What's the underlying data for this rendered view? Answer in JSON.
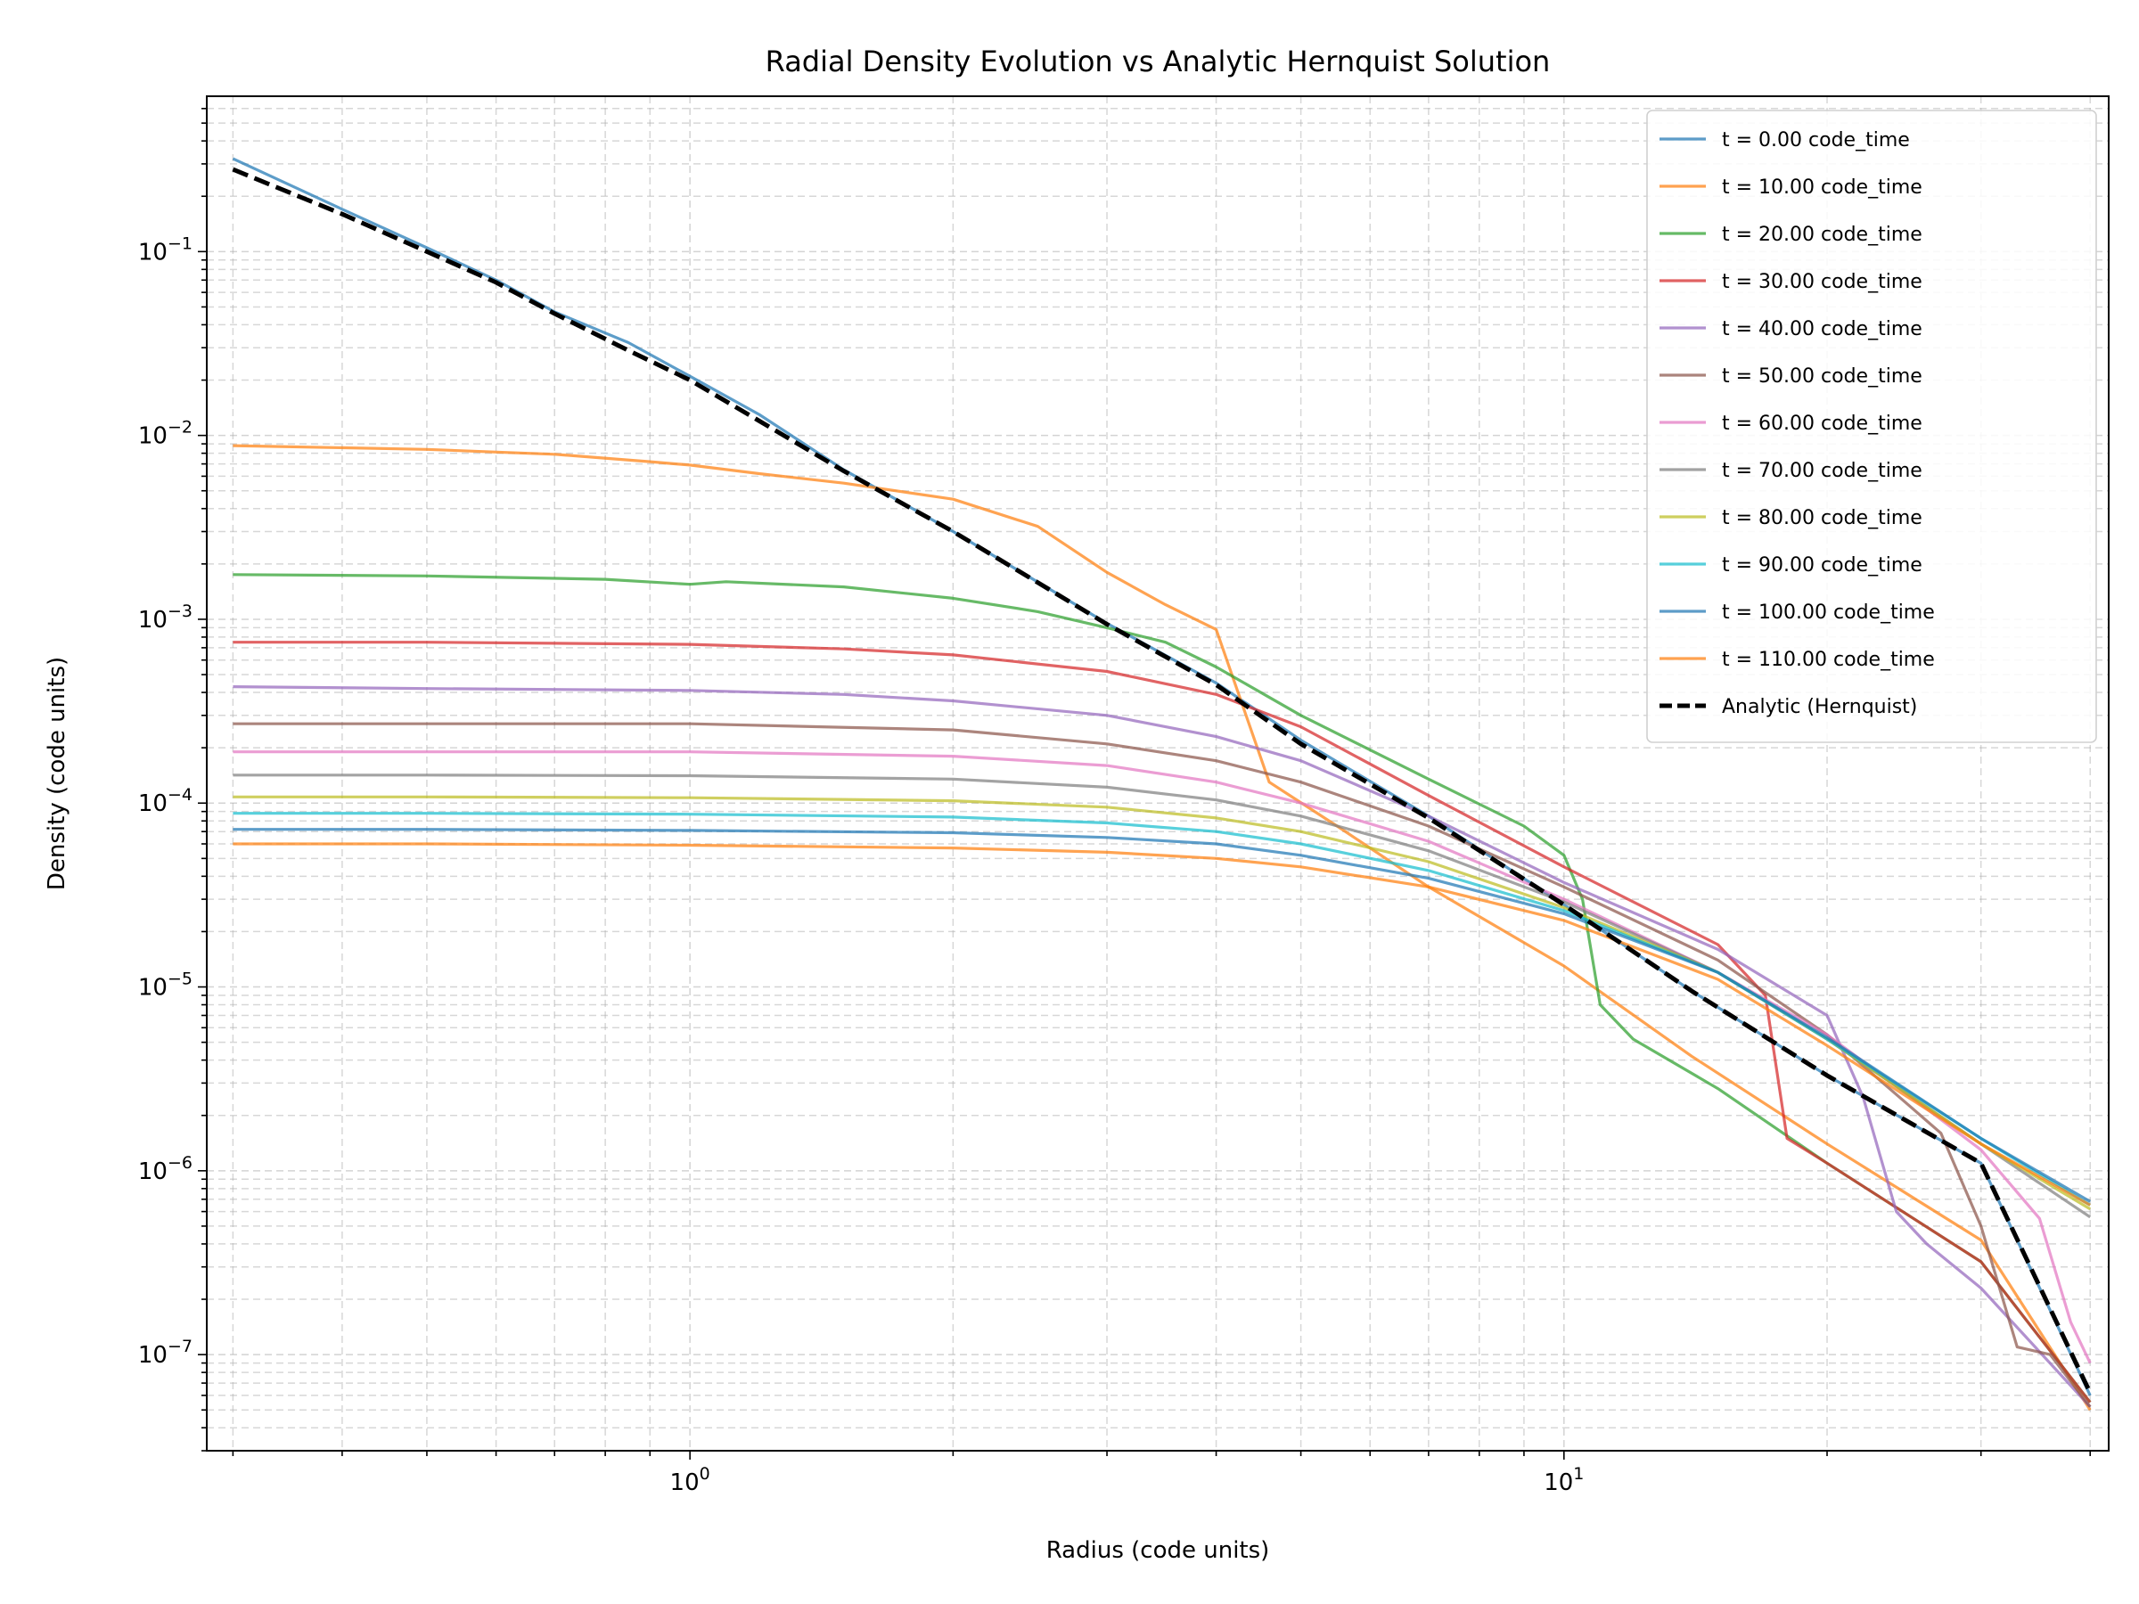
{
  "chart_data": {
    "type": "line",
    "title": "Radial Density Evolution vs Analytic Hernquist Solution",
    "xlabel": "Radius (code units)",
    "ylabel": "Density (code units)",
    "xscale": "log",
    "yscale": "log",
    "xlim": [
      0.28,
      42
    ],
    "ylim": [
      3e-08,
      0.7
    ],
    "grid": true,
    "legend_position": "top-right",
    "x_ticks": [
      {
        "base": "10",
        "exp": "0",
        "value": 1
      },
      {
        "base": "10",
        "exp": "1",
        "value": 10
      }
    ],
    "y_ticks": [
      {
        "base": "10",
        "exp": "−1",
        "value": 0.1
      },
      {
        "base": "10",
        "exp": "−2",
        "value": 0.01
      },
      {
        "base": "10",
        "exp": "−3",
        "value": 0.001
      },
      {
        "base": "10",
        "exp": "−4",
        "value": 0.0001
      },
      {
        "base": "10",
        "exp": "−5",
        "value": 1e-05
      },
      {
        "base": "10",
        "exp": "−6",
        "value": 1e-06
      },
      {
        "base": "10",
        "exp": "−7",
        "value": 1e-07
      }
    ],
    "series": [
      {
        "name": "t = 0.00 code_time",
        "color": "#1f77b4",
        "x": [
          0.3,
          0.4,
          0.5,
          0.6,
          0.7,
          0.85,
          1.0,
          1.2,
          1.5,
          2.0,
          3.0,
          4.0,
          5.0,
          7.0,
          10,
          14,
          20,
          30,
          40
        ],
        "y": [
          0.32,
          0.17,
          0.105,
          0.07,
          0.047,
          0.032,
          0.021,
          0.013,
          0.0065,
          0.003,
          0.00095,
          0.00045,
          0.00022,
          8.5e-05,
          2.8e-05,
          9.5e-06,
          3.3e-06,
          1.1e-06,
          6e-08
        ]
      },
      {
        "name": "t = 10.00 code_time",
        "color": "#ff7f0e",
        "x": [
          0.3,
          0.5,
          0.7,
          0.9,
          1.0,
          1.2,
          1.5,
          2.0,
          2.5,
          3.0,
          3.5,
          4.0,
          4.6,
          5.5,
          7.0,
          10,
          14,
          20,
          30,
          40
        ],
        "y": [
          0.0088,
          0.0084,
          0.0079,
          0.0072,
          0.0069,
          0.0062,
          0.0055,
          0.0045,
          0.0032,
          0.0018,
          0.0012,
          0.00088,
          0.00013,
          7.5e-05,
          3.5e-05,
          1.3e-05,
          4.2e-06,
          1.4e-06,
          4.2e-07,
          5e-08
        ]
      },
      {
        "name": "t = 20.00 code_time",
        "color": "#2ca02c",
        "x": [
          0.3,
          0.5,
          0.8,
          1.0,
          1.1,
          1.5,
          2.0,
          2.5,
          3.0,
          3.5,
          4.0,
          5.0,
          7.0,
          9.0,
          10,
          10.5,
          11,
          12,
          15,
          20,
          30,
          40
        ],
        "y": [
          0.00175,
          0.00172,
          0.00165,
          0.00155,
          0.0016,
          0.0015,
          0.0013,
          0.0011,
          0.0009,
          0.00075,
          0.00055,
          0.0003,
          0.000135,
          7.5e-05,
          5.2e-05,
          3e-05,
          8e-06,
          5.2e-06,
          2.8e-06,
          1.1e-06,
          3.2e-07,
          5.5e-08
        ]
      },
      {
        "name": "t = 30.00 code_time",
        "color": "#d62728",
        "x": [
          0.3,
          0.5,
          1.0,
          1.5,
          2.0,
          3.0,
          4.0,
          5.0,
          7.0,
          10,
          15,
          17,
          18,
          20,
          30,
          40
        ],
        "y": [
          0.00075,
          0.00075,
          0.00073,
          0.00069,
          0.00064,
          0.00052,
          0.00039,
          0.00026,
          0.00011,
          4.5e-05,
          1.7e-05,
          9e-06,
          1.5e-06,
          1.1e-06,
          3.2e-07,
          5.5e-08
        ]
      },
      {
        "name": "t = 40.00 code_time",
        "color": "#9467bd",
        "x": [
          0.3,
          0.5,
          1.0,
          1.5,
          2.0,
          3.0,
          4.0,
          5.0,
          7.0,
          10,
          15,
          20,
          22,
          24,
          26,
          30,
          40
        ],
        "y": [
          0.00043,
          0.00042,
          0.00041,
          0.00039,
          0.00036,
          0.0003,
          0.00023,
          0.00017,
          8.5e-05,
          3.7e-05,
          1.6e-05,
          7e-06,
          2.5e-06,
          6e-07,
          4e-07,
          2.3e-07,
          5.2e-08
        ]
      },
      {
        "name": "t = 50.00 code_time",
        "color": "#8c564b",
        "x": [
          0.3,
          0.5,
          1.0,
          2.0,
          3.0,
          4.0,
          5.0,
          7.0,
          10,
          15,
          20,
          25,
          27,
          30,
          33,
          36,
          40
        ],
        "y": [
          0.00027,
          0.00027,
          0.00027,
          0.00025,
          0.00021,
          0.00017,
          0.00013,
          7.5e-05,
          3.5e-05,
          1.4e-05,
          5.5e-06,
          2.2e-06,
          1.6e-06,
          5e-07,
          1.1e-07,
          1e-07,
          5.2e-08
        ]
      },
      {
        "name": "t = 60.00 code_time",
        "color": "#e377c2",
        "x": [
          0.3,
          0.5,
          1.0,
          2.0,
          3.0,
          4.0,
          5.0,
          7.0,
          10,
          15,
          20,
          25,
          30,
          35,
          38,
          40
        ],
        "y": [
          0.00019,
          0.00019,
          0.00019,
          0.00018,
          0.00016,
          0.00013,
          0.0001,
          6.2e-05,
          3e-05,
          1.2e-05,
          5.5e-06,
          2.5e-06,
          1.3e-06,
          5.5e-07,
          1.5e-07,
          9e-08
        ]
      },
      {
        "name": "t = 70.00 code_time",
        "color": "#7f7f7f",
        "x": [
          0.3,
          0.5,
          1.0,
          2.0,
          3.0,
          4.0,
          5.0,
          7.0,
          10,
          15,
          20,
          30,
          40
        ],
        "y": [
          0.000142,
          0.000142,
          0.000141,
          0.000135,
          0.000122,
          0.000104,
          8.5e-05,
          5.5e-05,
          2.9e-05,
          1.2e-05,
          5.2e-06,
          1.4e-06,
          5.6e-07
        ]
      },
      {
        "name": "t = 80.00 code_time",
        "color": "#bcbd22",
        "x": [
          0.3,
          0.5,
          1.0,
          2.0,
          3.0,
          4.0,
          5.0,
          7.0,
          10,
          15,
          20,
          30,
          40
        ],
        "y": [
          0.000108,
          0.000108,
          0.000107,
          0.000103,
          9.5e-05,
          8.3e-05,
          7e-05,
          4.8e-05,
          2.7e-05,
          1.2e-05,
          5.2e-06,
          1.4e-06,
          6.2e-07
        ]
      },
      {
        "name": "t = 90.00 code_time",
        "color": "#17becf",
        "x": [
          0.3,
          0.5,
          1.0,
          2.0,
          3.0,
          4.0,
          5.0,
          7.0,
          10,
          15,
          20,
          30,
          40
        ],
        "y": [
          8.8e-05,
          8.8e-05,
          8.7e-05,
          8.4e-05,
          7.8e-05,
          7e-05,
          6e-05,
          4.3e-05,
          2.6e-05,
          1.2e-05,
          5.2e-06,
          1.5e-06,
          6.5e-07
        ]
      },
      {
        "name": "t = 100.00 code_time",
        "color": "#1f77b4",
        "x": [
          0.3,
          0.5,
          1.0,
          2.0,
          3.0,
          4.0,
          5.0,
          7.0,
          10,
          15,
          20,
          30,
          40
        ],
        "y": [
          7.2e-05,
          7.2e-05,
          7.1e-05,
          6.9e-05,
          6.5e-05,
          6e-05,
          5.2e-05,
          3.9e-05,
          2.5e-05,
          1.2e-05,
          5.3e-06,
          1.5e-06,
          6.8e-07
        ]
      },
      {
        "name": "t = 110.00 code_time",
        "color": "#ff7f0e",
        "x": [
          0.3,
          0.5,
          1.0,
          2.0,
          3.0,
          4.0,
          5.0,
          7.0,
          10,
          15,
          20,
          30,
          40
        ],
        "y": [
          6e-05,
          6e-05,
          5.9e-05,
          5.7e-05,
          5.4e-05,
          5e-05,
          4.5e-05,
          3.5e-05,
          2.3e-05,
          1.1e-05,
          4.8e-06,
          1.4e-06,
          6.5e-07
        ]
      },
      {
        "name": "Analytic (Hernquist)",
        "color": "#000000",
        "dashed": true,
        "x": [
          0.3,
          0.4,
          0.5,
          0.6,
          0.7,
          0.85,
          1.0,
          1.2,
          1.5,
          2.0,
          3.0,
          4.0,
          5.0,
          7.0,
          10,
          14,
          20,
          30,
          40
        ],
        "y": [
          0.28,
          0.16,
          0.1,
          0.068,
          0.046,
          0.029,
          0.02,
          0.012,
          0.0064,
          0.003,
          0.00094,
          0.00044,
          0.00021,
          8.3e-05,
          2.8e-05,
          9.5e-06,
          3.3e-06,
          1.1e-06,
          6.2e-08
        ]
      }
    ]
  }
}
